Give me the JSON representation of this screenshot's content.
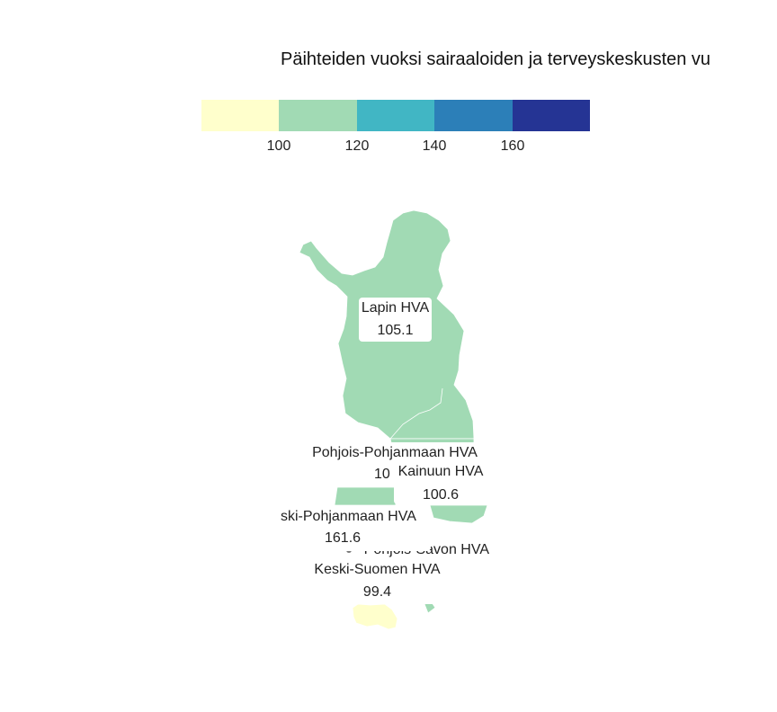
{
  "title": "Päihteiden vuoksi sairaaloiden ja terveyskeskusten vu",
  "legend": {
    "ticks": [
      "100",
      "120",
      "140",
      "160"
    ],
    "colors": [
      "#ffffcc",
      "#a1dab4",
      "#41b6c4",
      "#2c7fb8",
      "#253494"
    ]
  },
  "regions": [
    {
      "name": "Lapin HVA",
      "value": "105.1"
    },
    {
      "name": "Pohjois-Pohjanmaan HVA",
      "value": "10"
    },
    {
      "name": "Kainuun HVA",
      "value": "100.6"
    },
    {
      "name": "ski-Pohjanmaan HVA",
      "value": "161.6"
    },
    {
      "name": "Pohjois-Savon HVA",
      "value": ""
    },
    {
      "name": "Keski-Suomen HVA",
      "value": "99.4"
    }
  ]
}
